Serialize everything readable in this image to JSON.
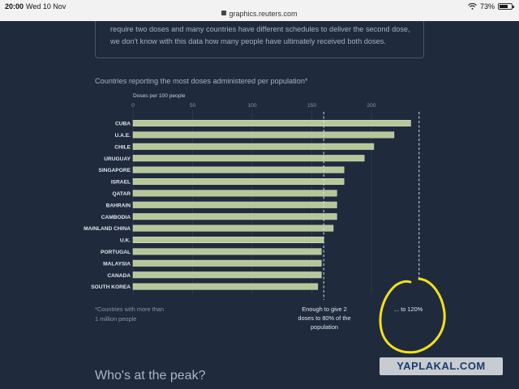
{
  "status_bar": {
    "time": "20:00",
    "date": "Wed 10 Nov",
    "url": "graphics.reuters.com",
    "battery": "73%",
    "battery_level": 0.73
  },
  "intro": {
    "line1": "require two doses and many countries have different schedules to deliver the second dose,",
    "line2": "we don't know with this data how many people have ultimately received both doses."
  },
  "chart_title": "Countries reporting the most doses administered per population*",
  "chart_data": {
    "type": "bar",
    "orientation": "horizontal",
    "xlabel": "Doses per 100 people",
    "xticks": [
      0,
      50,
      100,
      150,
      200
    ],
    "xlim": [
      0,
      230
    ],
    "categories": [
      "CUBA",
      "U.A.E.",
      "CHILE",
      "URUGUAY",
      "SINGAPORE",
      "ISRAEL",
      "QATAR",
      "BAHRAIN",
      "CAMBODIA",
      "MAINLAND CHINA",
      "U.K.",
      "PORTUGAL",
      "MALAYSIA",
      "CANADA",
      "SOUTH KOREA"
    ],
    "values": [
      233,
      219,
      202,
      194,
      177,
      177,
      171,
      171,
      171,
      168,
      160,
      158,
      158,
      158,
      155
    ],
    "reference_lines": [
      {
        "x": 160,
        "label": "Enough to give 2 doses to 80% of the population"
      },
      {
        "x": 240,
        "label": "... to 120%"
      }
    ],
    "bar_color": "#b7c79a",
    "grid": true
  },
  "footnote": {
    "line1": "*Countries with more than",
    "line2": "1 million people"
  },
  "annotation_80": {
    "line1": "Enough to give 2",
    "line2": "doses to 80% of the",
    "line3": "population"
  },
  "annotation_120": "... to 120%",
  "section_heading": "Who's at the peak?",
  "watermark": "YAPLAKAL.COM",
  "highlight_color": "#f4e01a"
}
